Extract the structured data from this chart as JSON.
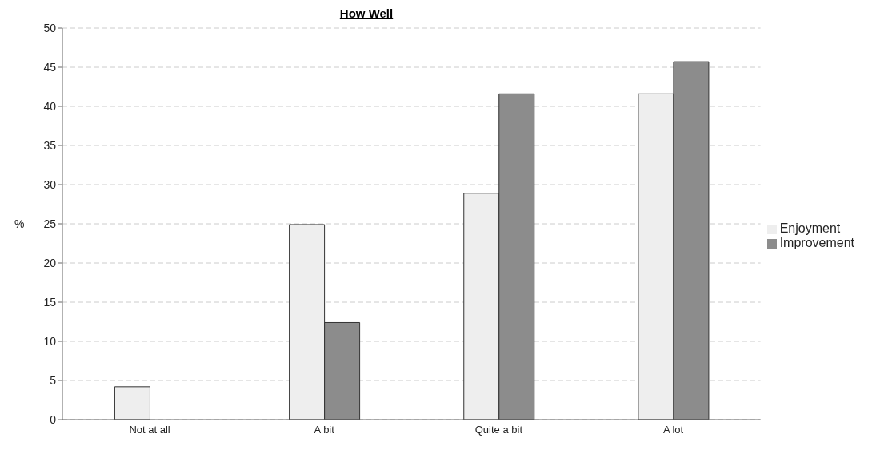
{
  "chart_data": {
    "type": "bar",
    "title": "How Well",
    "ylabel": "%",
    "categories": [
      "Not at all",
      "A bit",
      "Quite a bit",
      "A lot"
    ],
    "series": [
      {
        "name": "Enjoyment",
        "color": "#eeeeee",
        "values": [
          4.2,
          24.9,
          28.9,
          41.6
        ]
      },
      {
        "name": "Improvement",
        "color": "#8c8c8c",
        "values": [
          0,
          12.4,
          41.6,
          45.7
        ]
      }
    ],
    "ylim": [
      0,
      50
    ],
    "yticks": [
      0,
      5,
      10,
      15,
      20,
      25,
      30,
      35,
      40,
      45,
      50
    ],
    "grid": "y",
    "legend": "right"
  }
}
